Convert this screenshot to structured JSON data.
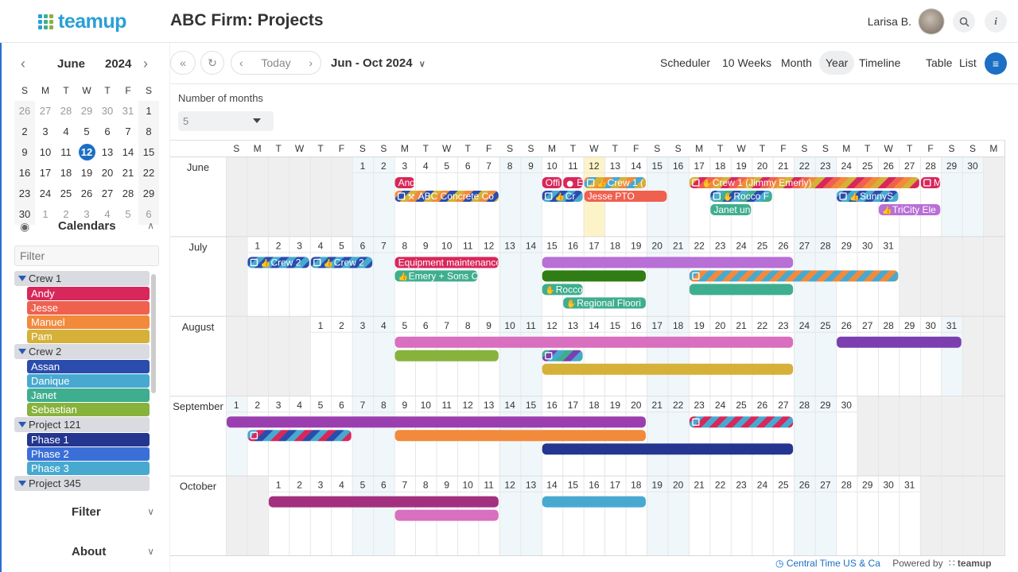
{
  "app": {
    "logo_text": "teamup",
    "title": "ABC Firm: Projects",
    "user": "Larisa B.",
    "search_icon": "search-icon",
    "info_icon": "info-icon"
  },
  "mini_calendar": {
    "month": "June",
    "year": "2024",
    "dow": [
      "S",
      "M",
      "T",
      "W",
      "T",
      "F",
      "S"
    ],
    "weeks": [
      [
        "26",
        "27",
        "28",
        "29",
        "30",
        "31",
        "1"
      ],
      [
        "2",
        "3",
        "4",
        "5",
        "6",
        "7",
        "8"
      ],
      [
        "9",
        "10",
        "11",
        "12",
        "13",
        "14",
        "15"
      ],
      [
        "16",
        "17",
        "18",
        "19",
        "20",
        "21",
        "22"
      ],
      [
        "23",
        "24",
        "25",
        "26",
        "27",
        "28",
        "29"
      ],
      [
        "30",
        "1",
        "2",
        "3",
        "4",
        "5",
        "6"
      ]
    ],
    "today": "12"
  },
  "calendars": {
    "heading": "Calendars",
    "filter_placeholder": "Filter",
    "groups": [
      {
        "name": "Crew 1",
        "items": [
          {
            "name": "Andy",
            "color": "#d8275b"
          },
          {
            "name": "Jesse",
            "color": "#f0604f"
          },
          {
            "name": "Manuel",
            "color": "#f28a3c"
          },
          {
            "name": "Pam",
            "color": "#d5b13a"
          }
        ]
      },
      {
        "name": "Crew 2",
        "items": [
          {
            "name": "Assan",
            "color": "#2a4dad"
          },
          {
            "name": "Danique",
            "color": "#48a9d0"
          },
          {
            "name": "Janet",
            "color": "#3fae8f"
          },
          {
            "name": "Sebastian",
            "color": "#87b23c"
          }
        ]
      },
      {
        "name": "Project 121",
        "items": [
          {
            "name": "Phase 1",
            "color": "#24368f"
          },
          {
            "name": "Phase 2",
            "color": "#3b6fd8"
          },
          {
            "name": "Phase 3",
            "color": "#48a9d0"
          }
        ]
      },
      {
        "name": "Project 345",
        "items": []
      }
    ]
  },
  "sections": {
    "filter": "Filter",
    "about": "About"
  },
  "toolbar": {
    "today": "Today",
    "range": "Jun - Oct 2024",
    "views": [
      "Scheduler",
      "10 Weeks",
      "Month",
      "Year",
      "Timeline",
      "Table",
      "List"
    ],
    "active_view": "Year"
  },
  "options": {
    "months_label": "Number of months",
    "months_value": "5"
  },
  "year_view": {
    "dow_header": [
      "S",
      "M",
      "T",
      "W",
      "T",
      "F",
      "S",
      "S",
      "M",
      "T",
      "W",
      "T",
      "F",
      "S",
      "S",
      "M",
      "T",
      "W",
      "T",
      "F",
      "S",
      "S",
      "M",
      "T",
      "W",
      "T",
      "F",
      "S",
      "S",
      "M",
      "T",
      "W",
      "T",
      "F",
      "S",
      "S",
      "M"
    ],
    "months": [
      {
        "name": "June",
        "offset": 6,
        "days": 30,
        "today": 12,
        "events": [
          {
            "lane": 0,
            "start": 3,
            "end": 3,
            "title": "Andy",
            "color": "#d8275b"
          },
          {
            "lane": 0,
            "start": 10,
            "end": 10,
            "title": "Offi",
            "color": "#d8275b"
          },
          {
            "lane": 0,
            "start": 11,
            "end": 11,
            "title": "E",
            "color": "#d8275b",
            "icon": "chat"
          },
          {
            "lane": 0,
            "start": 12,
            "end": 14,
            "title": "Crew 1 (",
            "color": "#f28a3c",
            "stripes": [
              "#f28a3c",
              "#48a9d0",
              "#d5b13a"
            ],
            "icon": "thumb",
            "rec": true
          },
          {
            "lane": 0,
            "start": 17,
            "end": 27,
            "title": "Crew 1 (Jimmy Emerly)",
            "color": "#d8275b",
            "stripes": [
              "#d8275b",
              "#f0604f",
              "#f28a3c",
              "#d5b13a"
            ],
            "icon": "hand",
            "rec": true
          },
          {
            "lane": 0,
            "start": 28,
            "end": 28,
            "title": "M",
            "color": "#d8275b",
            "rec": true
          },
          {
            "lane": 1,
            "start": 3,
            "end": 7,
            "title": "ABC Concrete Co",
            "color": "#2a4dad",
            "stripes": [
              "#2a4dad",
              "#d5b13a",
              "#f28a3c"
            ],
            "icon": "hammer",
            "rec": true
          },
          {
            "lane": 1,
            "start": 10,
            "end": 11,
            "title": "Cr",
            "color": "#2a4dad",
            "stripes": [
              "#2a4dad",
              "#48a9d0"
            ],
            "icon": "thumb",
            "rec": true
          },
          {
            "lane": 1,
            "start": 12,
            "end": 15,
            "title": "Jesse PTO",
            "color": "#f0604f"
          },
          {
            "lane": 1,
            "start": 18,
            "end": 20,
            "title": "Rocco F",
            "color": "#2a4dad",
            "stripes": [
              "#2a4dad",
              "#48a9d0",
              "#3fae8f"
            ],
            "icon": "hand",
            "rec": true
          },
          {
            "lane": 1,
            "start": 24,
            "end": 26,
            "title": "SunnyS",
            "color": "#2a4dad",
            "stripes": [
              "#2a4dad",
              "#48a9d0"
            ],
            "icon": "thumb",
            "rec": true
          },
          {
            "lane": 2,
            "start": 18,
            "end": 19,
            "title": "Janet un",
            "color": "#3fae8f"
          },
          {
            "lane": 2,
            "start": 26,
            "end": 28,
            "title": "TriCity Ele",
            "color": "#b86fd6",
            "icon": "thumb"
          }
        ]
      },
      {
        "name": "July",
        "offset": 1,
        "days": 31,
        "events": [
          {
            "lane": 0,
            "start": 1,
            "end": 3,
            "title": "Crew 2",
            "color": "#48a9d0",
            "stripes": [
              "#48a9d0",
              "#2a4dad"
            ],
            "icon": "thumb",
            "rec": true
          },
          {
            "lane": 0,
            "start": 4,
            "end": 6,
            "title": "Crew 2",
            "color": "#48a9d0",
            "stripes": [
              "#48a9d0",
              "#2a4dad"
            ],
            "icon": "thumb",
            "rec": true
          },
          {
            "lane": 0,
            "start": 8,
            "end": 12,
            "title": "Equipment maintenance",
            "color": "#d8275b"
          },
          {
            "lane": 0,
            "start": 15,
            "end": 26,
            "title": "",
            "color": "#b86fd6"
          },
          {
            "lane": 1,
            "start": 8,
            "end": 11,
            "title": "Emery + Sons C",
            "color": "#3fae8f",
            "icon": "thumb"
          },
          {
            "lane": 1,
            "start": 15,
            "end": 19,
            "title": "",
            "color": "#2f7d14"
          },
          {
            "lane": 1,
            "start": 22,
            "end": 31,
            "title": "",
            "color": "#f28a3c",
            "stripes": [
              "#f28a3c",
              "#48a9d0"
            ],
            "rec": true
          },
          {
            "lane": 2,
            "start": 15,
            "end": 16,
            "title": "Rocco",
            "color": "#3fae8f",
            "icon": "hand"
          },
          {
            "lane": 2,
            "start": 22,
            "end": 26,
            "title": "",
            "color": "#3fae8f"
          },
          {
            "lane": 3,
            "start": 16,
            "end": 19,
            "title": "Regional Floori",
            "color": "#3fae8f",
            "icon": "hand"
          }
        ]
      },
      {
        "name": "August",
        "offset": 4,
        "days": 31,
        "events": [
          {
            "lane": 0,
            "start": 5,
            "end": 23,
            "title": "",
            "color": "#d86fbf"
          },
          {
            "lane": 0,
            "start": 26,
            "end": 31,
            "title": "",
            "color": "#7b3fb0"
          },
          {
            "lane": 1,
            "start": 5,
            "end": 9,
            "title": "",
            "color": "#87b23c"
          },
          {
            "lane": 1,
            "start": 12,
            "end": 13,
            "title": "",
            "color": "#7b3fb0",
            "stripes": [
              "#7b3fb0",
              "#48a9d0",
              "#3fae8f"
            ],
            "rec": true
          },
          {
            "lane": 2,
            "start": 12,
            "end": 23,
            "title": "",
            "color": "#d5b13a"
          }
        ]
      },
      {
        "name": "September",
        "offset": 0,
        "days": 30,
        "events": [
          {
            "lane": 0,
            "start": 1,
            "end": 20,
            "title": "",
            "color": "#9b3fb0"
          },
          {
            "lane": 0,
            "start": 23,
            "end": 27,
            "title": "",
            "color": "#48a9d0",
            "stripes": [
              "#48a9d0",
              "#d8275b"
            ],
            "rec": true
          },
          {
            "lane": 1,
            "start": 2,
            "end": 6,
            "title": "",
            "color": "#d8275b",
            "stripes": [
              "#d8275b",
              "#2a4dad",
              "#48a9d0"
            ],
            "rec": true
          },
          {
            "lane": 1,
            "start": 9,
            "end": 20,
            "title": "",
            "color": "#f28a3c"
          },
          {
            "lane": 2,
            "start": 16,
            "end": 27,
            "title": "",
            "color": "#24368f"
          }
        ]
      },
      {
        "name": "October",
        "offset": 2,
        "days": 31,
        "events": [
          {
            "lane": 0,
            "start": 1,
            "end": 11,
            "title": "",
            "color": "#a3307f"
          },
          {
            "lane": 0,
            "start": 14,
            "end": 18,
            "title": "",
            "color": "#48a9d0"
          },
          {
            "lane": 1,
            "start": 7,
            "end": 11,
            "title": "",
            "color": "#d86fbf"
          }
        ]
      }
    ]
  },
  "footer": {
    "timezone": "Central Time US & Ca",
    "powered_by": "Powered by",
    "brand": "teamup"
  }
}
